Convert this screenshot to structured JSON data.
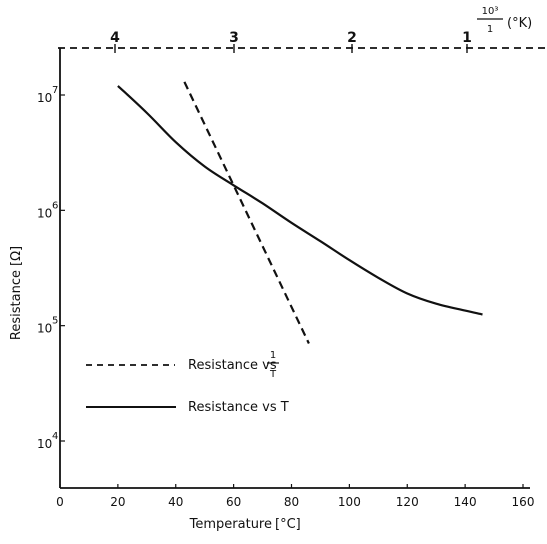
{
  "chart_data": {
    "type": "line",
    "xlabel": "Temperature",
    "xunit": "[°C]",
    "ylabel": "Resistance",
    "yunit": "[Ω]",
    "x_ticks": [
      "0",
      "20",
      "40",
      "60",
      "80",
      "100",
      "120",
      "140",
      "160"
    ],
    "xlim": [
      0,
      160
    ],
    "y_scale": "log",
    "y_ticks": [
      {
        "base": "10",
        "exp": "7"
      },
      {
        "base": "10",
        "exp": "6"
      },
      {
        "base": "10",
        "exp": "5"
      },
      {
        "base": "10",
        "exp": "4"
      }
    ],
    "top_axis": {
      "ticks": [
        "4",
        "3",
        "2",
        "1"
      ],
      "label_num": "10³",
      "label_den": "1",
      "label_unit": "(°K)"
    },
    "series": [
      {
        "name": "Resistance vs T",
        "style": "solid",
        "x": [
          20,
          30,
          40,
          50,
          60,
          70,
          80,
          90,
          100,
          110,
          120,
          130,
          140,
          146
        ],
        "y": [
          12000000,
          7000000,
          3900000,
          2400000,
          1650000,
          1150000,
          780000,
          540000,
          370000,
          260000,
          190000,
          155000,
          135000,
          125000
        ]
      },
      {
        "name": "Resistance vs 1/T",
        "style": "dashed",
        "x": [
          43,
          86
        ],
        "y": [
          13000000,
          70000
        ]
      }
    ],
    "legend": {
      "position": "lower-left",
      "items": [
        {
          "style": "dashed",
          "prefix": "Resistance vs",
          "frac_num": "1",
          "frac_den": "T"
        },
        {
          "style": "solid",
          "prefix": "Resistance vs T"
        }
      ]
    },
    "grid": false
  }
}
